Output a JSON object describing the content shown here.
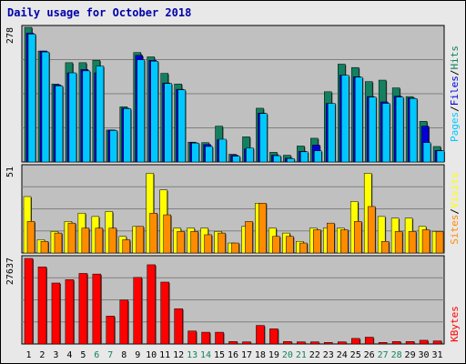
{
  "title": "Daily usage for October 2018",
  "colors": {
    "hits": "#138060",
    "files": "#0000d8",
    "pages": "#00c8ff",
    "visits": "#ffff00",
    "sites": "#ff8c00",
    "kbytes": "#ff0000",
    "weekday_label": "#000000",
    "weekend_label": "#138060"
  },
  "right_labels": {
    "top": [
      "Pages",
      "Files",
      "Hits"
    ],
    "middle": [
      "Sites",
      "Visits"
    ],
    "bottom": [
      "KBytes"
    ],
    "separator": "/"
  },
  "chart_data": [
    {
      "type": "bar",
      "panel": "hits-files-pages",
      "ylim": [
        0,
        278
      ],
      "ytick": "278",
      "categories": [
        "1",
        "2",
        "3",
        "4",
        "5",
        "6",
        "7",
        "8",
        "9",
        "10",
        "11",
        "12",
        "13",
        "14",
        "15",
        "16",
        "17",
        "18",
        "19",
        "20",
        "21",
        "22",
        "23",
        "24",
        "25",
        "26",
        "27",
        "28",
        "29",
        "30",
        "31"
      ],
      "weekend_days": [
        6,
        7,
        13,
        14,
        20,
        21,
        27,
        28
      ],
      "series": [
        {
          "name": "Hits",
          "values": [
            278,
            229,
            161,
            205,
            205,
            210,
            66,
            114,
            226,
            217,
            183,
            161,
            41,
            40,
            74,
            16,
            52,
            111,
            20,
            14,
            33,
            49,
            145,
            202,
            195,
            166,
            169,
            153,
            135,
            84,
            32
          ]
        },
        {
          "name": "Files",
          "values": [
            266,
            229,
            159,
            184,
            191,
            184,
            66,
            111,
            220,
            210,
            163,
            150,
            40,
            36,
            46,
            14,
            27,
            101,
            14,
            8,
            22,
            35,
            121,
            179,
            176,
            135,
            124,
            136,
            132,
            74,
            24
          ]
        },
        {
          "name": "Pages",
          "values": [
            264,
            227,
            157,
            184,
            188,
            198,
            65,
            110,
            211,
            208,
            162,
            149,
            39,
            32,
            47,
            12,
            29,
            100,
            13,
            7,
            21,
            23,
            121,
            179,
            175,
            134,
            121,
            134,
            131,
            40,
            23
          ]
        }
      ]
    },
    {
      "type": "bar",
      "panel": "visits-sites",
      "ylim": [
        0,
        51
      ],
      "ytick": "51",
      "categories": [
        "1",
        "2",
        "3",
        "4",
        "5",
        "6",
        "7",
        "8",
        "9",
        "10",
        "11",
        "12",
        "13",
        "14",
        "15",
        "16",
        "17",
        "18",
        "19",
        "20",
        "21",
        "22",
        "23",
        "24",
        "25",
        "26",
        "27",
        "28",
        "29",
        "30",
        "31"
      ],
      "series": [
        {
          "name": "Visits",
          "values": [
            34,
            8,
            13,
            19,
            24,
            22,
            25,
            10,
            16,
            48,
            38,
            15,
            15,
            15,
            13,
            6,
            16,
            30,
            15,
            12,
            7,
            15,
            15,
            15,
            31,
            48,
            22,
            21,
            21,
            16,
            13
          ]
        },
        {
          "name": "Sites",
          "values": [
            19,
            7,
            12,
            18,
            15,
            15,
            15,
            8,
            16,
            24,
            23,
            13,
            13,
            11,
            12,
            6,
            19,
            30,
            10,
            10,
            6,
            14,
            18,
            14,
            19,
            28,
            7,
            13,
            13,
            14,
            13
          ]
        }
      ]
    },
    {
      "type": "bar",
      "panel": "kbytes",
      "ylim": [
        0,
        27637
      ],
      "ytick": "27637",
      "categories": [
        "1",
        "2",
        "3",
        "4",
        "5",
        "6",
        "7",
        "8",
        "9",
        "10",
        "11",
        "12",
        "13",
        "14",
        "15",
        "16",
        "17",
        "18",
        "19",
        "20",
        "21",
        "22",
        "23",
        "24",
        "25",
        "26",
        "27",
        "28",
        "29",
        "30",
        "31"
      ],
      "series": [
        {
          "name": "KBytes",
          "values": [
            27637,
            24900,
            19700,
            20800,
            22800,
            22600,
            9000,
            14200,
            21500,
            25600,
            20000,
            11400,
            4200,
            3800,
            3800,
            800,
            700,
            6000,
            4900,
            800,
            700,
            700,
            500,
            700,
            1800,
            2200,
            500,
            800,
            800,
            1200,
            1000
          ]
        }
      ]
    }
  ]
}
